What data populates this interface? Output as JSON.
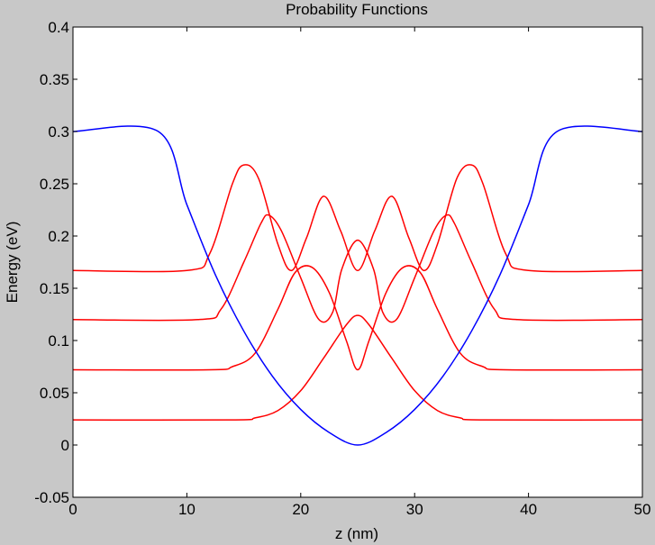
{
  "chart_data": {
    "type": "line",
    "title": "Probability Functions",
    "xlabel": "z (nm)",
    "ylabel": "Energy (eV)",
    "xlim": [
      0,
      50
    ],
    "ylim": [
      -0.05,
      0.4
    ],
    "x_ticks": [
      0,
      10,
      20,
      30,
      40,
      50
    ],
    "y_ticks": [
      -0.05,
      0,
      0.05,
      0.1,
      0.15,
      0.2,
      0.25,
      0.3,
      0.35,
      0.4
    ],
    "x_tick_labels": [
      "0",
      "10",
      "20",
      "30",
      "40",
      "50"
    ],
    "y_tick_labels": [
      "-0.05",
      "0",
      "0.05",
      "0.1",
      "0.15",
      "0.2",
      "0.25",
      "0.3",
      "0.35",
      "0.4"
    ],
    "grid": false,
    "background_color": "#c8c8c8",
    "axes_color": "#ffffff",
    "potential": {
      "color": "#0000ff",
      "x": [
        0,
        7.5,
        10,
        12.5,
        15,
        17.5,
        20,
        22.5,
        25,
        27.5,
        30,
        32.5,
        35,
        37.5,
        40,
        42.5,
        50
      ],
      "y": [
        0.3,
        0.3,
        0.23,
        0.163,
        0.109,
        0.066,
        0.034,
        0.012,
        0.0,
        0.012,
        0.034,
        0.066,
        0.109,
        0.163,
        0.23,
        0.3,
        0.3
      ]
    },
    "series": [
      {
        "color": "#ff0000",
        "x": [
          0,
          14,
          16,
          18,
          20,
          22,
          24,
          25,
          26,
          28,
          30,
          32,
          34,
          36,
          50
        ],
        "y": [
          0.024,
          0.024,
          0.026,
          0.033,
          0.052,
          0.083,
          0.115,
          0.124,
          0.115,
          0.083,
          0.052,
          0.033,
          0.026,
          0.024,
          0.024
        ]
      },
      {
        "color": "#ff0000",
        "x": [
          0,
          12,
          14,
          16,
          18,
          19.5,
          21,
          22.5,
          24,
          25,
          26,
          27.5,
          29,
          30.5,
          32,
          34,
          36,
          38,
          50
        ],
        "y": [
          0.072,
          0.072,
          0.075,
          0.088,
          0.13,
          0.165,
          0.17,
          0.146,
          0.1,
          0.072,
          0.1,
          0.146,
          0.17,
          0.165,
          0.13,
          0.088,
          0.075,
          0.072,
          0.072
        ]
      },
      {
        "color": "#ff0000",
        "x": [
          0,
          11,
          13,
          15,
          16.5,
          17.2,
          18.3,
          20,
          21.6,
          22.8,
          23.6,
          25,
          26.4,
          27.2,
          28.4,
          30,
          31.7,
          32.8,
          33.5,
          35,
          37,
          39,
          50
        ],
        "y": [
          0.12,
          0.12,
          0.13,
          0.175,
          0.212,
          0.22,
          0.205,
          0.16,
          0.12,
          0.127,
          0.168,
          0.196,
          0.168,
          0.127,
          0.12,
          0.16,
          0.205,
          0.22,
          0.212,
          0.175,
          0.13,
          0.12,
          0.12
        ]
      },
      {
        "color": "#ff0000",
        "x": [
          0,
          10,
          12,
          14,
          15,
          16.3,
          18,
          19.2,
          20.5,
          22,
          23.5,
          25,
          26.5,
          28,
          29.5,
          30.8,
          32,
          33.7,
          35,
          36,
          38,
          40,
          50
        ],
        "y": [
          0.167,
          0.167,
          0.183,
          0.25,
          0.268,
          0.255,
          0.192,
          0.167,
          0.198,
          0.238,
          0.205,
          0.167,
          0.205,
          0.238,
          0.198,
          0.167,
          0.192,
          0.255,
          0.268,
          0.25,
          0.183,
          0.167,
          0.167
        ]
      }
    ]
  }
}
